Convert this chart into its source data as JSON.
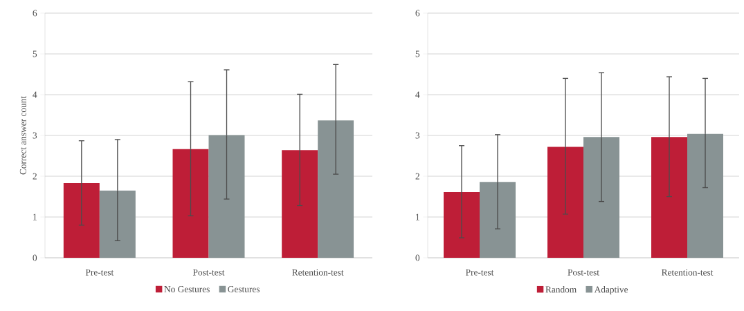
{
  "chart_data": [
    {
      "type": "bar",
      "ylabel": "Correct answer count",
      "categories": [
        "Pre-test",
        "Post-test",
        "Retention-test"
      ],
      "ylim": [
        0,
        6
      ],
      "yticks": [
        0,
        1,
        2,
        3,
        4,
        5,
        6
      ],
      "grid": "y",
      "legend": "bottom",
      "series": [
        {
          "name": "No Gestures",
          "color": "#be1e37",
          "values": [
            1.83,
            2.67,
            2.64
          ],
          "errors": [
            [
              0.8,
              2.87
            ],
            [
              1.03,
              4.32
            ],
            [
              1.28,
              4.01
            ]
          ]
        },
        {
          "name": "Gestures",
          "color": "#889394",
          "values": [
            1.65,
            3.01,
            3.37
          ],
          "errors": [
            [
              0.42,
              2.9
            ],
            [
              1.44,
              4.61
            ],
            [
              2.05,
              4.74
            ]
          ]
        }
      ]
    },
    {
      "type": "bar",
      "categories": [
        "Pre-test",
        "Post-test",
        "Retention-test"
      ],
      "ylim": [
        0,
        6
      ],
      "yticks": [
        0,
        1,
        2,
        3,
        4,
        5,
        6
      ],
      "grid": "y",
      "legend": "bottom",
      "series": [
        {
          "name": "Random",
          "color": "#be1e37",
          "values": [
            1.61,
            2.72,
            2.96
          ],
          "errors": [
            [
              0.49,
              2.75
            ],
            [
              1.07,
              4.4
            ],
            [
              1.5,
              4.44
            ]
          ]
        },
        {
          "name": "Adaptive",
          "color": "#889394",
          "values": [
            1.86,
            2.96,
            3.04
          ],
          "errors": [
            [
              0.71,
              3.02
            ],
            [
              1.38,
              4.54
            ],
            [
              1.72,
              4.4
            ]
          ]
        }
      ]
    }
  ]
}
